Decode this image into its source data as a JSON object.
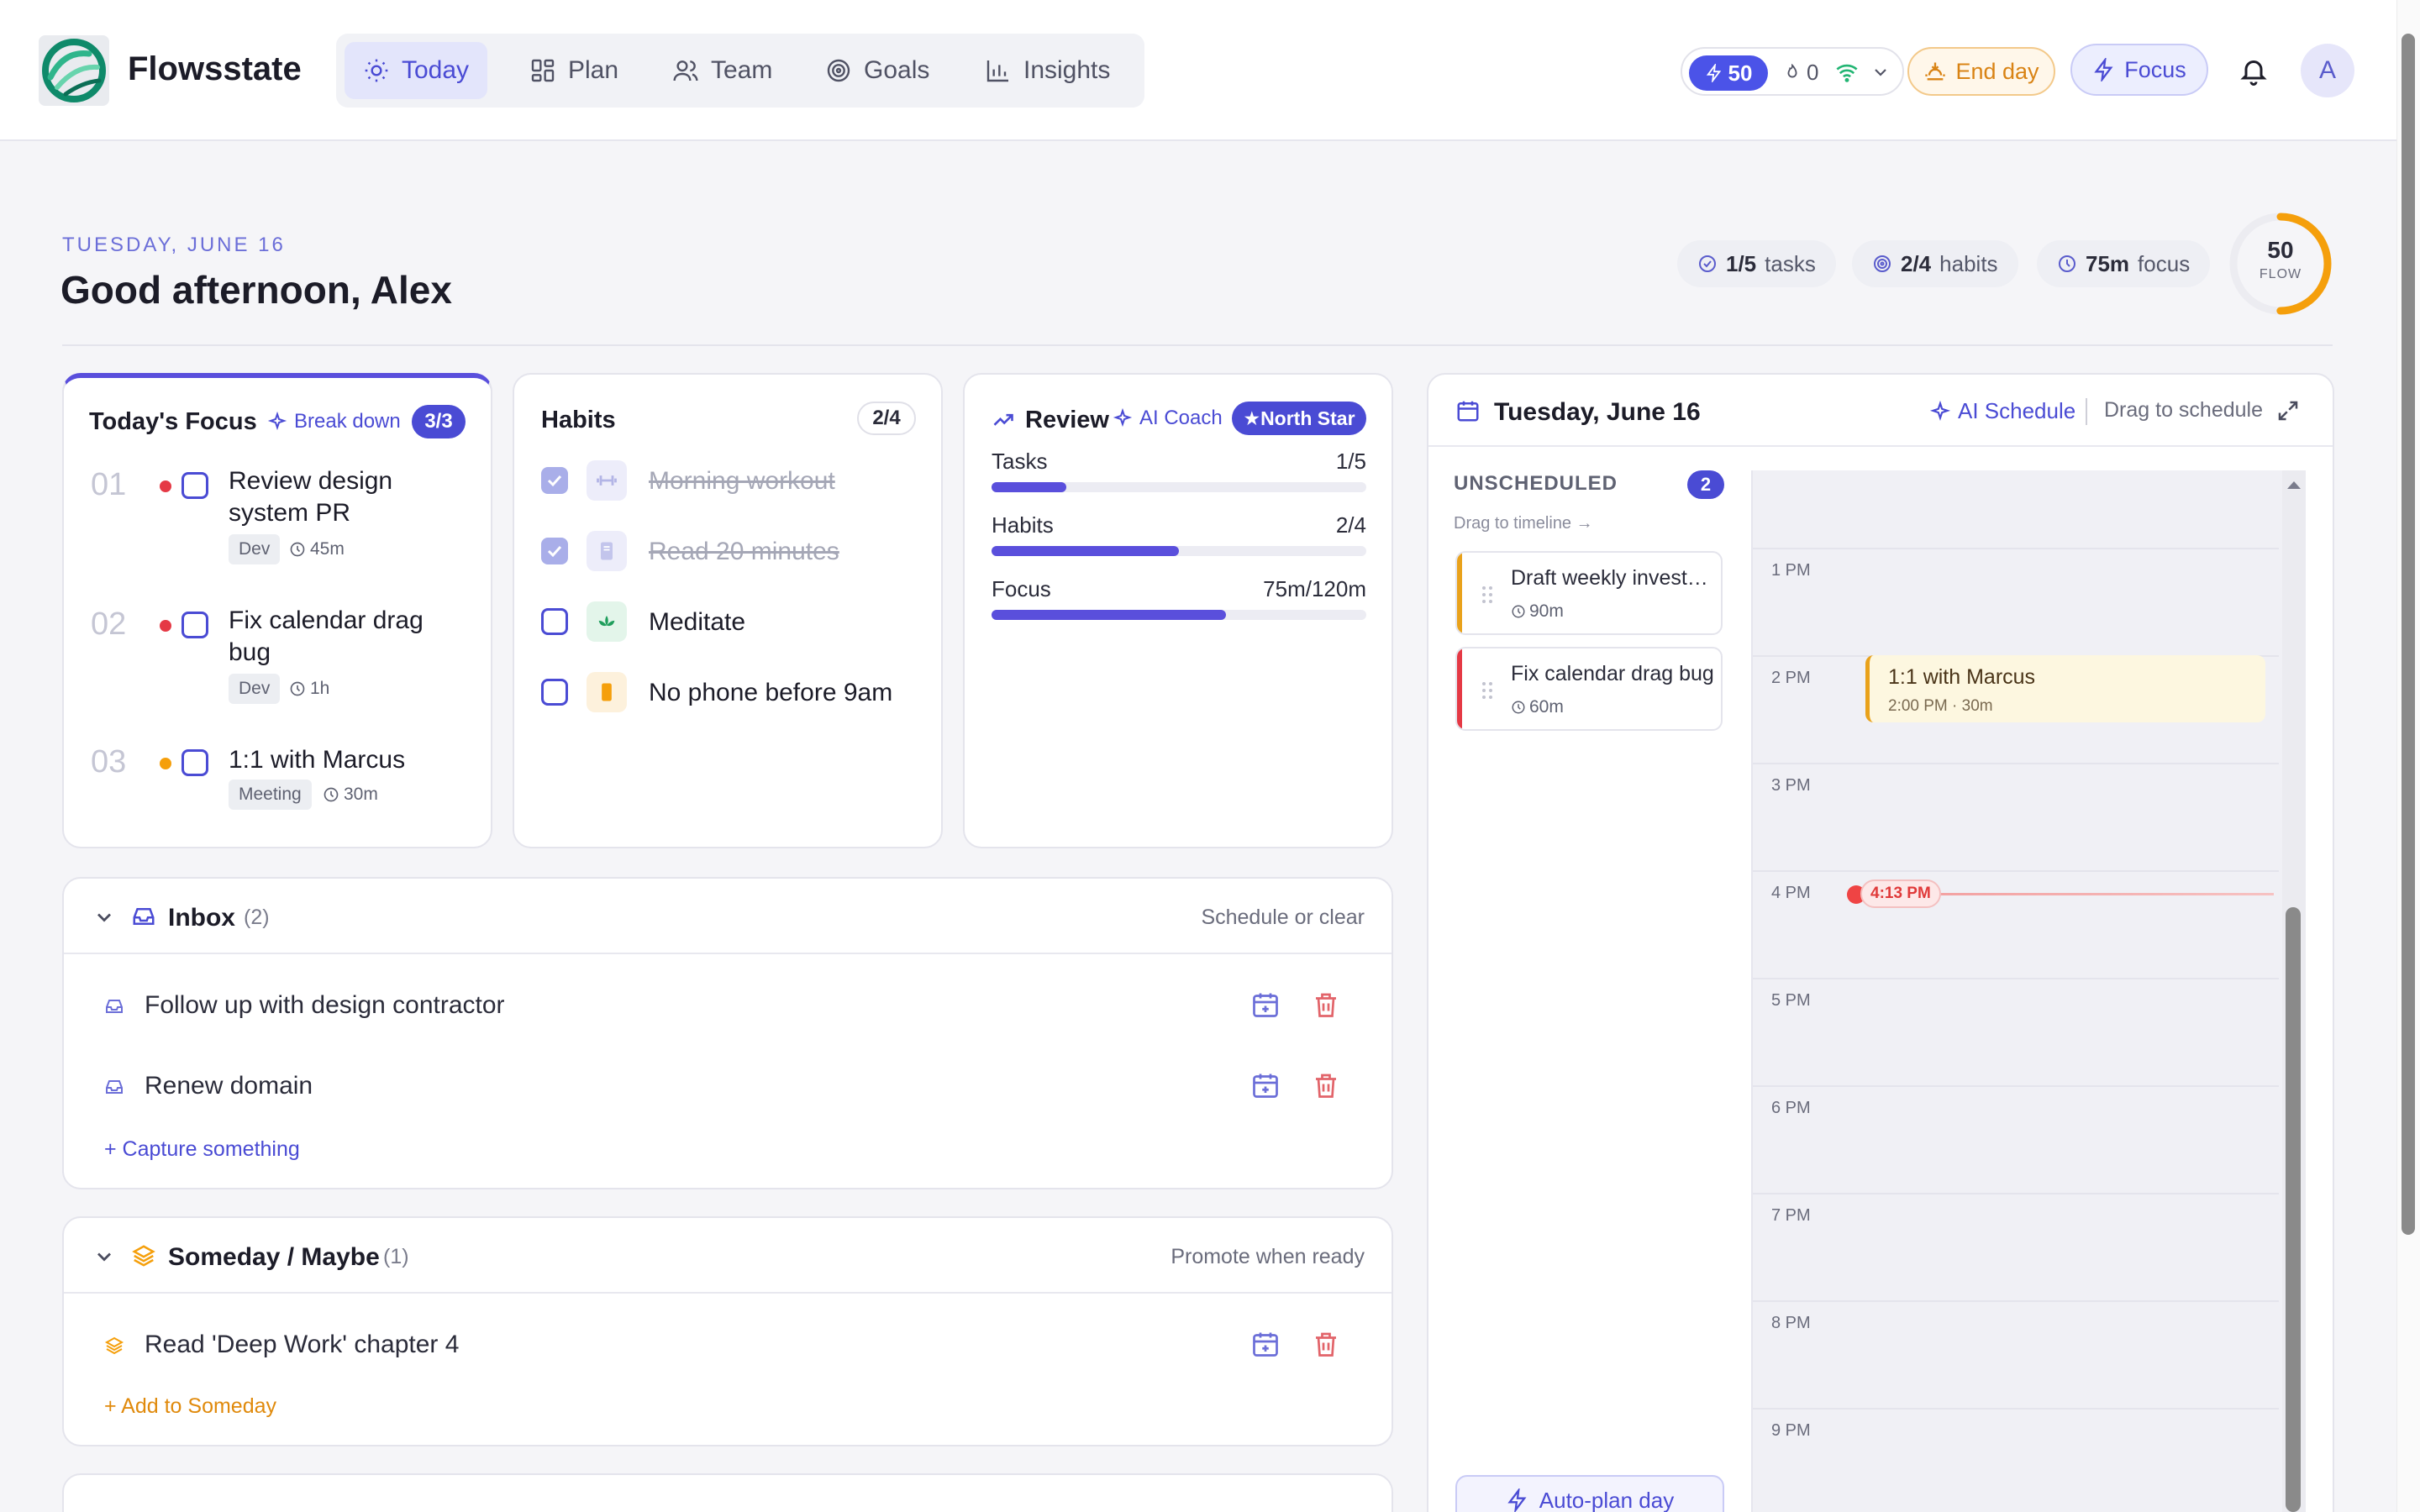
{
  "app": {
    "brand": "Flowsstate"
  },
  "nav": {
    "items": [
      {
        "label": "Today",
        "icon": "sun-icon",
        "active": true
      },
      {
        "label": "Plan",
        "icon": "grid-icon"
      },
      {
        "label": "Team",
        "icon": "users-icon"
      },
      {
        "label": "Goals",
        "icon": "target-icon"
      },
      {
        "label": "Insights",
        "icon": "bar-chart-icon"
      }
    ]
  },
  "topbar": {
    "flow_points": "50",
    "streak": "0",
    "end_day_label": "End day",
    "focus_label": "Focus",
    "avatar_initial": "A"
  },
  "header": {
    "date": "TUESDAY, JUNE 16",
    "greeting": "Good afternoon, Alex",
    "chips": [
      {
        "value": "1/5",
        "label": "tasks",
        "icon": "check-circle-icon"
      },
      {
        "value": "2/4",
        "label": "habits",
        "icon": "target-icon"
      },
      {
        "value": "75m",
        "label": "focus",
        "icon": "clock-icon"
      }
    ],
    "flow_score": "50",
    "flow_label": "FLOW",
    "flow_progress": 0.5
  },
  "focus_card": {
    "title": "Today's Focus",
    "breakdown_label": "Break down",
    "count": "3/3",
    "tasks": [
      {
        "num": "01",
        "title": "Review design system PR",
        "tag": "Dev",
        "duration": "45m",
        "priority_color": "#e53945"
      },
      {
        "num": "02",
        "title": "Fix calendar drag bug",
        "tag": "Dev",
        "duration": "1h",
        "priority_color": "#e53945"
      },
      {
        "num": "03",
        "title": "1:1 with Marcus",
        "tag": "Meeting",
        "duration": "30m",
        "priority_color": "#f59f0b"
      }
    ]
  },
  "habits_card": {
    "title": "Habits",
    "count": "2/4",
    "items": [
      {
        "name": "Morning workout",
        "done": true,
        "icon": "dumbbell-icon"
      },
      {
        "name": "Read 20 minutes",
        "done": true,
        "icon": "book-icon"
      },
      {
        "name": "Meditate",
        "done": false,
        "icon": "lotus-icon"
      },
      {
        "name": "No phone before 9am",
        "done": false,
        "icon": "phone-icon"
      }
    ]
  },
  "review_card": {
    "title": "Review",
    "coach_label": "AI Coach",
    "northstar_label": "★North Star",
    "metrics": [
      {
        "label": "Tasks",
        "value": "1/5",
        "progress": 0.2
      },
      {
        "label": "Habits",
        "value": "2/4",
        "progress": 0.5
      },
      {
        "label": "Focus",
        "value": "75m/120m",
        "progress": 0.625
      }
    ]
  },
  "inbox": {
    "title": "Inbox",
    "count": "(2)",
    "right_label": "Schedule or clear",
    "items": [
      {
        "text": "Follow up with design contractor"
      },
      {
        "text": "Renew domain"
      }
    ],
    "add_label": "+ Capture something"
  },
  "someday": {
    "title": "Someday / Maybe",
    "count": "(1)",
    "right_label": "Promote when ready",
    "items": [
      {
        "text": "Read 'Deep Work' chapter 4"
      }
    ],
    "add_label": "+ Add to Someday"
  },
  "calendar": {
    "title": "Tuesday, June 16",
    "ai_schedule_label": "AI Schedule",
    "drag_label": "Drag to schedule",
    "unscheduled_label": "UNSCHEDULED",
    "unscheduled_count": "2",
    "drag_hint": "Drag to timeline →",
    "unscheduled": [
      {
        "title": "Draft weekly investor update",
        "duration": "90m",
        "color": "#e9a21b"
      },
      {
        "title": "Fix calendar drag bug",
        "duration": "60m",
        "color": "#e53945"
      }
    ],
    "hours": [
      "1 PM",
      "2 PM",
      "3 PM",
      "4 PM",
      "5 PM",
      "6 PM",
      "7 PM",
      "8 PM",
      "9 PM"
    ],
    "event": {
      "title": "1:1 with Marcus",
      "sub": "2:00 PM · 30m"
    },
    "now_label": "4:13 PM",
    "autoplan_label": "Auto-plan day"
  },
  "colors": {
    "accent": "#4a4bd4",
    "amber": "#e9a21b",
    "red": "#e53945"
  }
}
